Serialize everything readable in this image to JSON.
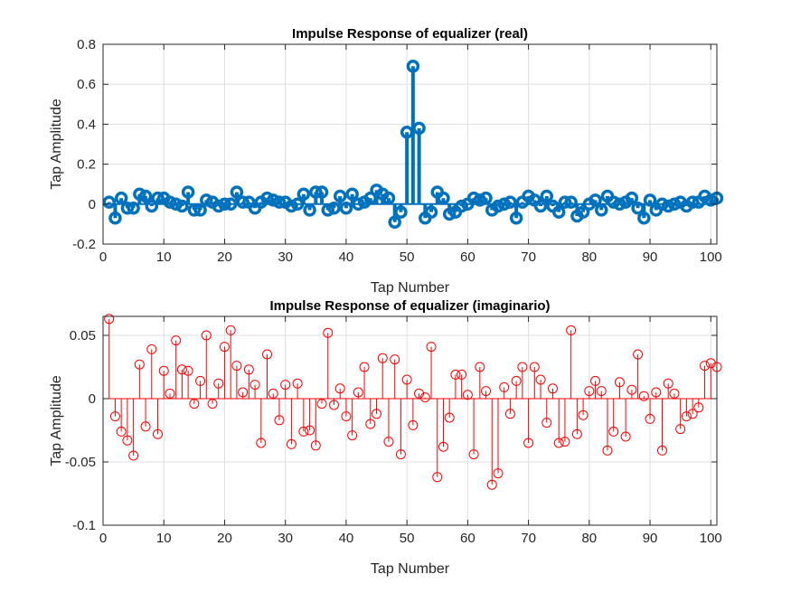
{
  "chart_data": [
    {
      "type": "stem",
      "title": "Impulse Response of equalizer (real)",
      "xlabel": "Tap Number",
      "ylabel": "Tap Amplitude",
      "xlim": [
        0,
        101
      ],
      "ylim": [
        -0.2,
        0.8
      ],
      "xticks": [
        "0",
        "10",
        "20",
        "30",
        "40",
        "50",
        "60",
        "70",
        "80",
        "90",
        "100"
      ],
      "yticks": [
        "-0.2",
        "0",
        "0.2",
        "0.4",
        "0.6",
        "0.8"
      ],
      "grid": true,
      "color": "#0072bd",
      "marker": "circle",
      "x": [
        1,
        2,
        3,
        4,
        5,
        6,
        7,
        8,
        9,
        10,
        11,
        12,
        13,
        14,
        15,
        16,
        17,
        18,
        19,
        20,
        21,
        22,
        23,
        24,
        25,
        26,
        27,
        28,
        29,
        30,
        31,
        32,
        33,
        34,
        35,
        36,
        37,
        38,
        39,
        40,
        41,
        42,
        43,
        44,
        45,
        46,
        47,
        48,
        49,
        50,
        51,
        52,
        53,
        54,
        55,
        56,
        57,
        58,
        59,
        60,
        61,
        62,
        63,
        64,
        65,
        66,
        67,
        68,
        69,
        70,
        71,
        72,
        73,
        74,
        75,
        76,
        77,
        78,
        79,
        80,
        81,
        82,
        83,
        84,
        85,
        86,
        87,
        88,
        89,
        90,
        91,
        92,
        93,
        94,
        95,
        96,
        97,
        98,
        99,
        100,
        101
      ],
      "values": [
        0.01,
        -0.07,
        0.03,
        -0.02,
        -0.02,
        0.05,
        0.04,
        -0.01,
        0.03,
        0.03,
        0.01,
        0.0,
        -0.01,
        0.06,
        -0.03,
        -0.03,
        0.02,
        0.01,
        -0.01,
        0.0,
        0.0,
        0.06,
        0.01,
        0.01,
        -0.02,
        0.01,
        0.03,
        0.02,
        0.01,
        0.01,
        -0.01,
        0.0,
        0.05,
        -0.03,
        0.06,
        0.06,
        -0.03,
        -0.02,
        0.04,
        -0.02,
        0.05,
        0.0,
        0.01,
        0.03,
        0.07,
        0.05,
        0.03,
        -0.09,
        -0.04,
        0.36,
        0.69,
        0.38,
        -0.07,
        -0.04,
        0.06,
        0.03,
        -0.05,
        -0.04,
        -0.01,
        0.0,
        0.03,
        0.02,
        0.03,
        -0.03,
        -0.01,
        0.0,
        0.01,
        -0.07,
        0.01,
        0.04,
        0.02,
        -0.01,
        0.04,
        -0.01,
        -0.04,
        0.01,
        0.01,
        -0.06,
        -0.04,
        0.0,
        0.02,
        -0.03,
        0.04,
        0.01,
        0.0,
        0.01,
        0.03,
        -0.02,
        -0.07,
        0.02,
        -0.03,
        0.0,
        -0.01,
        0.0,
        0.01,
        -0.01,
        0.01,
        0.01,
        0.04,
        0.02,
        0.03
      ]
    },
    {
      "type": "stem",
      "title": "Impulse Response of equalizer (imaginario)",
      "xlabel": "Tap Number",
      "ylabel": "Tap Amplitude",
      "xlim": [
        0,
        101
      ],
      "ylim": [
        -0.1,
        0.065
      ],
      "xticks": [
        "0",
        "10",
        "20",
        "30",
        "40",
        "50",
        "60",
        "70",
        "80",
        "90",
        "100"
      ],
      "yticks": [
        "-0.1",
        "-0.05",
        "0",
        "0.05"
      ],
      "grid": true,
      "color": "#ff0000",
      "marker": "circle",
      "x": [
        1,
        2,
        3,
        4,
        5,
        6,
        7,
        8,
        9,
        10,
        11,
        12,
        13,
        14,
        15,
        16,
        17,
        18,
        19,
        20,
        21,
        22,
        23,
        24,
        25,
        26,
        27,
        28,
        29,
        30,
        31,
        32,
        33,
        34,
        35,
        36,
        37,
        38,
        39,
        40,
        41,
        42,
        43,
        44,
        45,
        46,
        47,
        48,
        49,
        50,
        51,
        52,
        53,
        54,
        55,
        56,
        57,
        58,
        59,
        60,
        61,
        62,
        63,
        64,
        65,
        66,
        67,
        68,
        69,
        70,
        71,
        72,
        73,
        74,
        75,
        76,
        77,
        78,
        79,
        80,
        81,
        82,
        83,
        84,
        85,
        86,
        87,
        88,
        89,
        90,
        91,
        92,
        93,
        94,
        95,
        96,
        97,
        98,
        99,
        100,
        101
      ],
      "values": [
        0.063,
        -0.014,
        -0.026,
        -0.033,
        -0.045,
        0.027,
        -0.022,
        0.039,
        -0.028,
        0.022,
        0.004,
        0.046,
        0.023,
        0.022,
        -0.004,
        0.014,
        0.05,
        -0.004,
        0.012,
        0.041,
        0.054,
        0.026,
        0.005,
        0.023,
        0.011,
        -0.035,
        0.035,
        0.004,
        -0.017,
        0.011,
        -0.036,
        0.012,
        -0.026,
        -0.025,
        -0.037,
        -0.004,
        0.052,
        -0.005,
        0.008,
        -0.014,
        -0.029,
        0.005,
        0.025,
        -0.02,
        -0.012,
        0.032,
        -0.034,
        0.031,
        -0.044,
        0.015,
        -0.021,
        0.004,
        0.001,
        0.041,
        -0.062,
        -0.038,
        -0.015,
        0.019,
        0.019,
        0.003,
        -0.044,
        0.025,
        0.006,
        -0.068,
        -0.059,
        0.009,
        -0.012,
        0.014,
        0.025,
        -0.035,
        0.025,
        0.015,
        -0.019,
        0.008,
        -0.035,
        -0.034,
        0.054,
        -0.028,
        -0.013,
        0.006,
        0.014,
        0.006,
        -0.041,
        -0.026,
        0.013,
        -0.03,
        0.007,
        0.035,
        0.002,
        -0.016,
        0.005,
        -0.041,
        0.012,
        0.004,
        -0.024,
        -0.014,
        -0.012,
        -0.007,
        0.026,
        0.028,
        0.025
      ]
    }
  ]
}
